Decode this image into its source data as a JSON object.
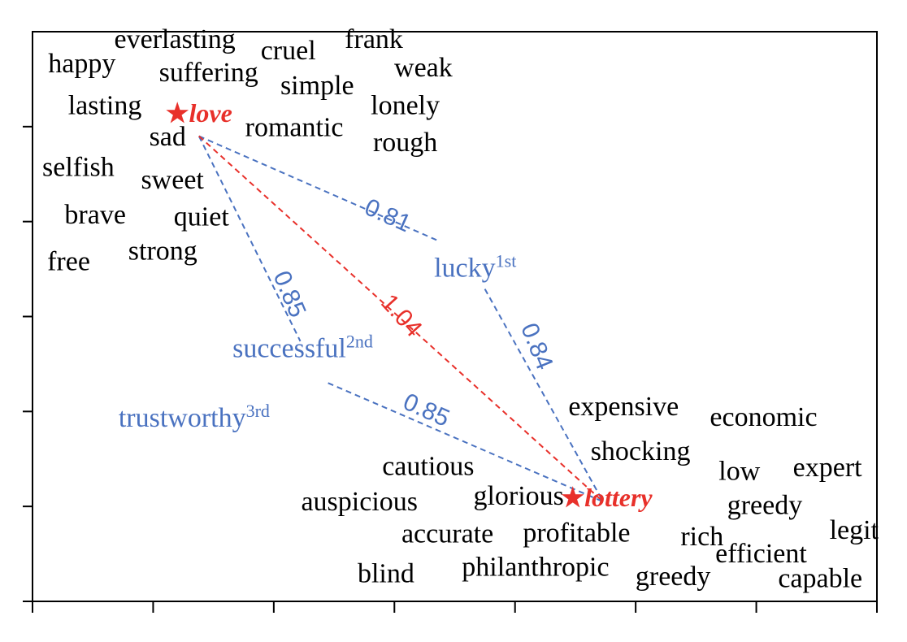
{
  "colors": {
    "anchor": "#e8302a",
    "candidate": "#4a72c0",
    "axis": "#000000",
    "word": "#000000"
  },
  "chart_data": {
    "type": "scatter",
    "grid": false,
    "xlim": [
      0,
      7.0
    ],
    "ylim": [
      0,
      6.0
    ],
    "xticks": [
      0,
      1,
      2,
      3,
      4,
      5,
      6,
      7
    ],
    "yticks": [
      0,
      1,
      2,
      3,
      4,
      5
    ],
    "anchors": [
      {
        "label": "love",
        "x": 1.38,
        "y": 5.05,
        "marker": "★"
      },
      {
        "label": "lottery",
        "x": 4.76,
        "y": 1.0,
        "marker": "★"
      }
    ],
    "candidates": [
      {
        "label": "lucky",
        "rank": "1st",
        "x": 3.67,
        "y": 3.42
      },
      {
        "label": "successful",
        "rank": "2nd",
        "x": 2.24,
        "y": 2.57
      },
      {
        "label": "trustworthy",
        "rank": "3rd",
        "x": 1.34,
        "y": 1.84
      }
    ],
    "distances": [
      {
        "label": "0.81",
        "from": [
          1.38,
          4.9
        ],
        "to": [
          3.36,
          3.8
        ],
        "label_at": [
          2.94,
          4.05
        ],
        "rotation": 24,
        "color": "candidate"
      },
      {
        "label": "0.85",
        "from": [
          1.38,
          4.9
        ],
        "to": [
          2.22,
          2.74
        ],
        "label_at": [
          2.12,
          3.23
        ],
        "rotation": 67,
        "color": "candidate"
      },
      {
        "label": "1.04",
        "from": [
          1.38,
          4.9
        ],
        "to": [
          4.73,
          1.05
        ],
        "label_at": [
          3.05,
          3.0
        ],
        "rotation": 48,
        "color": "anchor"
      },
      {
        "label": "0.84",
        "from": [
          3.75,
          3.29
        ],
        "to": [
          4.73,
          1.05
        ],
        "label_at": [
          4.17,
          2.68
        ],
        "rotation": 68,
        "color": "candidate"
      },
      {
        "label": "0.85",
        "from": [
          2.45,
          2.3
        ],
        "to": [
          4.73,
          1.05
        ],
        "label_at": [
          3.26,
          2.0
        ],
        "rotation": 24,
        "color": "candidate"
      }
    ],
    "words": [
      {
        "label": "everlasting",
        "x": 1.18,
        "y": 5.83
      },
      {
        "label": "cruel",
        "x": 2.12,
        "y": 5.71
      },
      {
        "label": "frank",
        "x": 2.83,
        "y": 5.83
      },
      {
        "label": "happy",
        "x": 0.41,
        "y": 5.57
      },
      {
        "label": "suffering",
        "x": 1.46,
        "y": 5.48
      },
      {
        "label": "simple",
        "x": 2.36,
        "y": 5.34
      },
      {
        "label": "weak",
        "x": 3.24,
        "y": 5.53
      },
      {
        "label": "lasting",
        "x": 0.6,
        "y": 5.13
      },
      {
        "label": "lonely",
        "x": 3.09,
        "y": 5.13
      },
      {
        "label": "sad",
        "x": 1.12,
        "y": 4.8
      },
      {
        "label": "romantic",
        "x": 2.17,
        "y": 4.9
      },
      {
        "label": "rough",
        "x": 3.09,
        "y": 4.74
      },
      {
        "label": "selfish",
        "x": 0.38,
        "y": 4.48
      },
      {
        "label": "sweet",
        "x": 1.16,
        "y": 4.35
      },
      {
        "label": "brave",
        "x": 0.52,
        "y": 3.98
      },
      {
        "label": "quiet",
        "x": 1.4,
        "y": 3.96
      },
      {
        "label": "free",
        "x": 0.3,
        "y": 3.49
      },
      {
        "label": "strong",
        "x": 1.08,
        "y": 3.6
      },
      {
        "label": "expensive",
        "x": 4.9,
        "y": 1.96
      },
      {
        "label": "economic",
        "x": 6.06,
        "y": 1.85
      },
      {
        "label": "shocking",
        "x": 5.04,
        "y": 1.49
      },
      {
        "label": "low",
        "x": 5.86,
        "y": 1.28
      },
      {
        "label": "expert",
        "x": 6.59,
        "y": 1.32
      },
      {
        "label": "cautious",
        "x": 3.28,
        "y": 1.33
      },
      {
        "label": "auspicious",
        "x": 2.71,
        "y": 0.96
      },
      {
        "label": "glorious",
        "x": 4.03,
        "y": 1.02
      },
      {
        "label": "greedy",
        "x": 6.07,
        "y": 0.92
      },
      {
        "label": "accurate",
        "x": 3.44,
        "y": 0.62
      },
      {
        "label": "profitable",
        "x": 4.51,
        "y": 0.63
      },
      {
        "label": "rich",
        "x": 5.55,
        "y": 0.59
      },
      {
        "label": "legit",
        "x": 6.81,
        "y": 0.66
      },
      {
        "label": "efficient",
        "x": 6.04,
        "y": 0.41
      },
      {
        "label": "blind",
        "x": 2.93,
        "y": 0.2
      },
      {
        "label": "philanthropic",
        "x": 4.17,
        "y": 0.27
      },
      {
        "label": "greedy",
        "x": 5.31,
        "y": 0.17
      },
      {
        "label": "capable",
        "x": 6.53,
        "y": 0.15
      }
    ]
  }
}
